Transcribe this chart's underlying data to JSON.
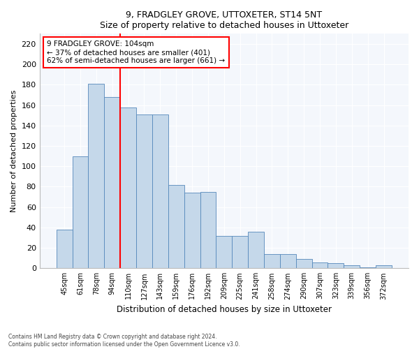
{
  "title1": "9, FRADGLEY GROVE, UTTOXETER, ST14 5NT",
  "title2": "Size of property relative to detached houses in Uttoxeter",
  "xlabel": "Distribution of detached houses by size in Uttoxeter",
  "ylabel": "Number of detached properties",
  "categories": [
    "45sqm",
    "61sqm",
    "78sqm",
    "94sqm",
    "110sqm",
    "127sqm",
    "143sqm",
    "159sqm",
    "176sqm",
    "192sqm",
    "209sqm",
    "225sqm",
    "241sqm",
    "258sqm",
    "274sqm",
    "290sqm",
    "307sqm",
    "323sqm",
    "339sqm",
    "356sqm",
    "372sqm"
  ],
  "values": [
    38,
    110,
    181,
    168,
    158,
    151,
    151,
    82,
    74,
    75,
    32,
    32,
    36,
    14,
    14,
    9,
    6,
    5,
    3,
    1,
    3
  ],
  "bar_color": "#c5d8ea",
  "bar_edge_color": "#5588bb",
  "vline_x": 3.5,
  "vline_color": "red",
  "annotation_text": "9 FRADGLEY GROVE: 104sqm\n← 37% of detached houses are smaller (401)\n62% of semi-detached houses are larger (661) →",
  "annotation_box_color": "white",
  "annotation_box_edge": "red",
  "ylim": [
    0,
    230
  ],
  "yticks": [
    0,
    20,
    40,
    60,
    80,
    100,
    120,
    140,
    160,
    180,
    200,
    220
  ],
  "footnote": "Contains HM Land Registry data © Crown copyright and database right 2024.\nContains public sector information licensed under the Open Government Licence v3.0.",
  "bg_color": "#ffffff",
  "plot_bg_color": "#f4f7fc",
  "fig_width": 6.0,
  "fig_height": 5.0,
  "fig_dpi": 100
}
